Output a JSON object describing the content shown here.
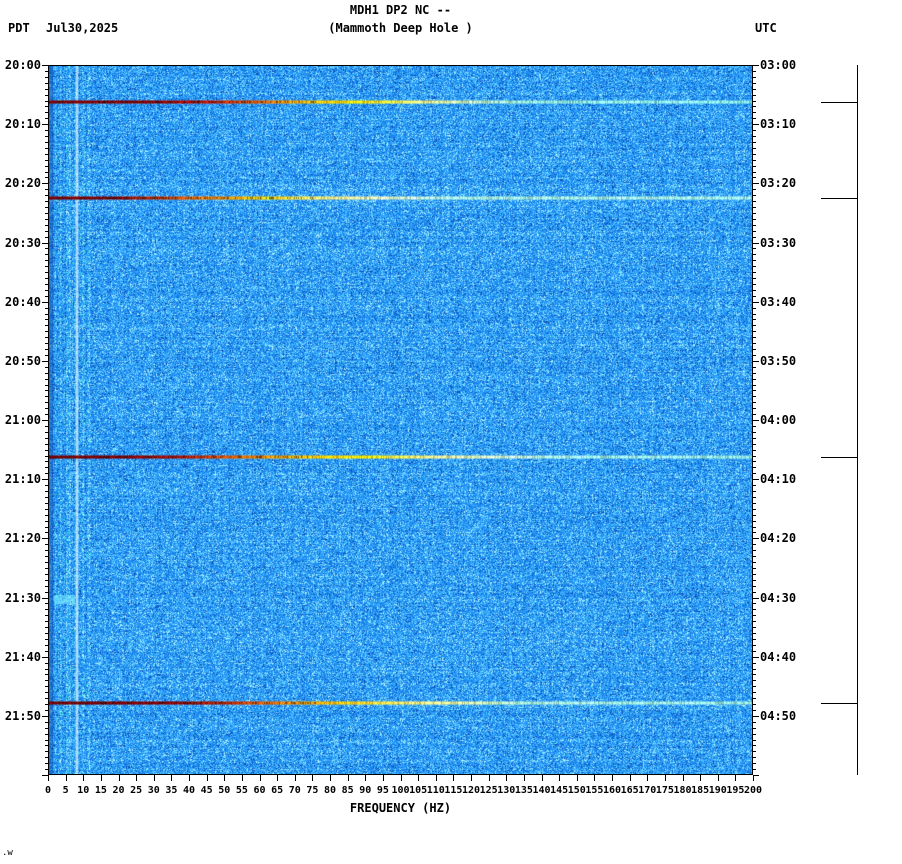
{
  "header": {
    "tz_left": "PDT",
    "date": "Jul30,2025",
    "title_line1": "MDH1 DP2 NC --",
    "title_line2": "(Mammoth Deep Hole )",
    "tz_right": "UTC"
  },
  "chart_data": {
    "type": "heatmap",
    "subtype": "seismic-spectrogram",
    "title": "MDH1 DP2 NC -- (Mammoth Deep Hole )",
    "xlabel": "FREQUENCY (HZ)",
    "x_range_hz": [
      0,
      200
    ],
    "x_tick_step_hz": 5,
    "x_tick_labels": [
      "0",
      "5",
      "10",
      "15",
      "20",
      "25",
      "30",
      "35",
      "40",
      "45",
      "50",
      "55",
      "60",
      "65",
      "70",
      "75",
      "80",
      "85",
      "90",
      "95",
      "100",
      "105",
      "110",
      "115",
      "120",
      "125",
      "130",
      "135",
      "140",
      "145",
      "150",
      "155",
      "160",
      "165",
      "170",
      "175",
      "180",
      "185",
      "190",
      "195",
      "200"
    ],
    "left_axis": {
      "timezone": "PDT",
      "start": "20:00",
      "end": "22:00",
      "label_step_minutes": 10,
      "minor_tick_minutes": 1,
      "labels": [
        "20:00",
        "20:10",
        "20:20",
        "20:30",
        "20:40",
        "20:50",
        "21:00",
        "21:10",
        "21:20",
        "21:30",
        "21:40",
        "21:50"
      ]
    },
    "right_axis": {
      "timezone": "UTC",
      "start": "03:00",
      "end": "05:00",
      "label_step_minutes": 10,
      "minor_tick_minutes": 1,
      "labels": [
        "03:00",
        "03:10",
        "03:20",
        "03:30",
        "03:40",
        "03:50",
        "04:00",
        "04:10",
        "04:20",
        "04:30",
        "04:40",
        "04:50"
      ]
    },
    "background": {
      "style": "blue-noise",
      "base_color": "#1E90FF",
      "dark_color": "#0C50B9",
      "light_color": "#B9F5FF"
    },
    "vertical_artifact": {
      "hz": 8,
      "color": "#D2F0FF"
    },
    "events": [
      {
        "time_pdt": "20:06",
        "time_utc": "03:06",
        "frac": 0.0517,
        "stops": [
          [
            0,
            "#6E0000"
          ],
          [
            0.16,
            "#8B0000"
          ],
          [
            0.23,
            "#C01400"
          ],
          [
            0.3,
            "#F06000"
          ],
          [
            0.37,
            "#FFB400"
          ],
          [
            0.45,
            "#FFE400"
          ],
          [
            0.53,
            "#EFEF7E"
          ],
          [
            0.61,
            "#BCEFC0"
          ],
          [
            0.68,
            "#93EEDC"
          ],
          [
            1,
            "#84EBE2"
          ]
        ]
      },
      {
        "time_pdt": "20:22",
        "time_utc": "03:22",
        "frac": 0.1867,
        "stops": [
          [
            0,
            "#6E0000"
          ],
          [
            0.1,
            "#8B0000"
          ],
          [
            0.16,
            "#C53000"
          ],
          [
            0.23,
            "#FF7E00"
          ],
          [
            0.31,
            "#FFC900"
          ],
          [
            0.4,
            "#FFEB82"
          ],
          [
            0.48,
            "#DCF2BC"
          ],
          [
            0.56,
            "#A6EEDC"
          ],
          [
            1,
            "#9AECE0"
          ]
        ]
      },
      {
        "time_pdt": "21:06",
        "time_utc": "04:06",
        "frac": 0.5517,
        "stops": [
          [
            0,
            "#6E0000"
          ],
          [
            0.12,
            "#8B0000"
          ],
          [
            0.19,
            "#B21200"
          ],
          [
            0.27,
            "#EE6600"
          ],
          [
            0.35,
            "#FFB200"
          ],
          [
            0.45,
            "#FFE400"
          ],
          [
            0.55,
            "#F0EF90"
          ],
          [
            0.65,
            "#C4EFCC"
          ],
          [
            0.73,
            "#9CEDDE"
          ],
          [
            1,
            "#8FEAE1"
          ]
        ]
      },
      {
        "time_pdt": "21:48",
        "time_utc": "04:48",
        "frac": 0.8983,
        "stops": [
          [
            0,
            "#6E0000"
          ],
          [
            0.18,
            "#8B0000"
          ],
          [
            0.25,
            "#C42600"
          ],
          [
            0.33,
            "#FF7A00"
          ],
          [
            0.42,
            "#FFC600"
          ],
          [
            0.52,
            "#FFEB74"
          ],
          [
            0.6,
            "#D6F1A6"
          ],
          [
            0.68,
            "#A6EED6"
          ],
          [
            1,
            "#95EBDE"
          ]
        ]
      }
    ],
    "noise_blob": {
      "time_pdt": "21:29",
      "hz_range": [
        2,
        8
      ],
      "color": "#78EBFF"
    },
    "grid": false,
    "legend": "none"
  },
  "footer": {
    "corner_text": ".w"
  }
}
